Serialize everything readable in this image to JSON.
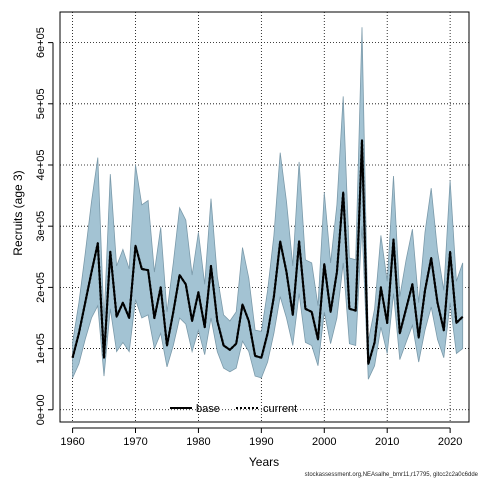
{
  "chart_data": {
    "type": "area",
    "title": "",
    "xlabel": "Years",
    "ylabel": "Recruits (age 3)",
    "xlim": [
      1958,
      2023
    ],
    "ylim": [
      -20000,
      650000
    ],
    "xticks": [
      1960,
      1970,
      1980,
      1990,
      2000,
      2010,
      2020
    ],
    "xtick_labels": [
      "1960",
      "1970",
      "1980",
      "1990",
      "2000",
      "2010",
      "2020"
    ],
    "yticks": [
      0,
      100000,
      200000,
      300000,
      400000,
      500000,
      600000
    ],
    "ytick_labels": [
      "0e+00",
      "1e+05",
      "2e+05",
      "3e+05",
      "4e+05",
      "5e+05",
      "6e+05"
    ],
    "grid": true,
    "legend_position": "bottom-center",
    "band_color": "#a3c3d3",
    "band_edge_color": "#7b9aaa",
    "x": [
      1960,
      1961,
      1962,
      1963,
      1964,
      1965,
      1966,
      1967,
      1968,
      1969,
      1970,
      1971,
      1972,
      1973,
      1974,
      1975,
      1976,
      1977,
      1978,
      1979,
      1980,
      1981,
      1982,
      1983,
      1984,
      1985,
      1986,
      1987,
      1988,
      1989,
      1990,
      1991,
      1992,
      1993,
      1994,
      1995,
      1996,
      1997,
      1998,
      1999,
      2000,
      2001,
      2002,
      2003,
      2004,
      2005,
      2006,
      2007,
      2008,
      2009,
      2010,
      2011,
      2012,
      2013,
      2014,
      2015,
      2016,
      2017,
      2018,
      2019,
      2020,
      2021,
      2022
    ],
    "series": [
      {
        "name": "base",
        "style": "solid",
        "color": "#000000",
        "values": [
          85000,
          125000,
          175000,
          225000,
          272000,
          85000,
          258000,
          152000,
          175000,
          150000,
          268000,
          230000,
          228000,
          150000,
          200000,
          105000,
          160000,
          220000,
          205000,
          145000,
          192000,
          135000,
          235000,
          145000,
          105000,
          98000,
          108000,
          172000,
          145000,
          88000,
          85000,
          125000,
          185000,
          275000,
          225000,
          155000,
          275000,
          165000,
          160000,
          115000,
          238000,
          160000,
          225000,
          355000,
          165000,
          162000,
          440000,
          75000,
          110000,
          200000,
          142000,
          278000,
          125000,
          165000,
          205000,
          118000,
          195000,
          248000,
          175000,
          130000,
          258000,
          142000,
          152000
        ]
      },
      {
        "name": "current",
        "style": "dotted",
        "color": "#000000",
        "values": [
          85000,
          125000,
          175000,
          225000,
          272000,
          85000,
          258000,
          152000,
          175000,
          150000,
          268000,
          230000,
          228000,
          150000,
          200000,
          105000,
          160000,
          220000,
          205000,
          145000,
          192000,
          135000,
          235000,
          145000,
          105000,
          98000,
          108000,
          172000,
          145000,
          88000,
          85000,
          125000,
          185000,
          275000,
          225000,
          155000,
          275000,
          165000,
          160000,
          115000,
          238000,
          160000,
          225000,
          355000,
          165000,
          162000,
          440000,
          75000,
          110000,
          200000,
          142000,
          278000,
          125000,
          165000,
          205000,
          118000,
          195000,
          248000,
          175000,
          130000,
          258000,
          142000,
          152000
        ]
      }
    ],
    "band_lower": [
      52000,
      75000,
      115000,
      150000,
      170000,
      55000,
      165000,
      95000,
      110000,
      95000,
      180000,
      150000,
      155000,
      100000,
      125000,
      70000,
      105000,
      150000,
      140000,
      95000,
      130000,
      90000,
      150000,
      95000,
      68000,
      62000,
      68000,
      112000,
      95000,
      55000,
      52000,
      78000,
      125000,
      185000,
      150000,
      105000,
      190000,
      110000,
      105000,
      72000,
      160000,
      108000,
      150000,
      240000,
      108000,
      105000,
      300000,
      50000,
      72000,
      135000,
      92000,
      190000,
      82000,
      110000,
      138000,
      78000,
      130000,
      168000,
      115000,
      85000,
      175000,
      92000,
      100000
    ],
    "band_upper": [
      110000,
      175000,
      255000,
      340000,
      412000,
      145000,
      385000,
      235000,
      262000,
      230000,
      400000,
      335000,
      342000,
      225000,
      298000,
      160000,
      240000,
      330000,
      310000,
      220000,
      290000,
      205000,
      345000,
      218000,
      155000,
      145000,
      160000,
      265000,
      215000,
      130000,
      128000,
      195000,
      285000,
      420000,
      340000,
      235000,
      405000,
      245000,
      240000,
      170000,
      355000,
      240000,
      335000,
      512000,
      248000,
      245000,
      625000,
      112000,
      165000,
      285000,
      210000,
      382000,
      185000,
      245000,
      295000,
      175000,
      290000,
      362000,
      260000,
      195000,
      375000,
      210000,
      240000
    ]
  },
  "legend": {
    "items": [
      {
        "label": "base",
        "style": "solid"
      },
      {
        "label": "current",
        "style": "dotted"
      }
    ]
  },
  "credit": "stockassessment.org,NEAsalhe_bmr11,r17795, gitcc2c2a0c6dde"
}
